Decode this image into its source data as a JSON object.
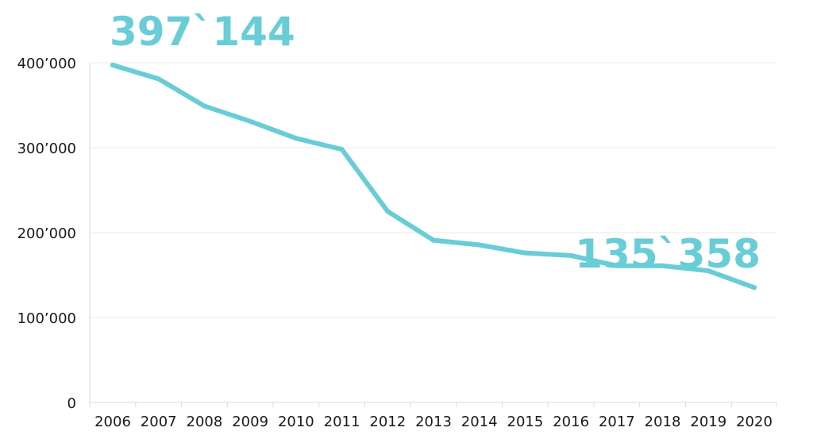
{
  "chart_data": {
    "type": "line",
    "title": "",
    "xlabel": "",
    "ylabel": "",
    "categories": [
      "2006",
      "2007",
      "2008",
      "2009",
      "2010",
      "2011",
      "2012",
      "2013",
      "2014",
      "2015",
      "2016",
      "2017",
      "2018",
      "2019",
      "2020"
    ],
    "series": [
      {
        "values": [
          397144,
          381000,
          349000,
          331000,
          311000,
          298000,
          225000,
          191000,
          185500,
          176000,
          173000,
          161000,
          161000,
          155000,
          135358
        ],
        "color": "#68cdd6"
      }
    ],
    "ylim": [
      0,
      400000
    ],
    "yticks": [
      0,
      100000,
      200000,
      300000,
      400000
    ],
    "ytick_labels": [
      "0",
      "100’000",
      "200’000",
      "300’000",
      "400’000"
    ],
    "grid": true,
    "gridline_color": "#e8e8e8",
    "axis_color": "#d9d9d9",
    "annotations": [
      {
        "text": "397`144",
        "category": "2006",
        "anchor": "start",
        "color": "#68cdd6"
      },
      {
        "text": "135`358",
        "category": "2020",
        "anchor": "end",
        "color": "#68cdd6"
      }
    ],
    "legend": "none"
  }
}
